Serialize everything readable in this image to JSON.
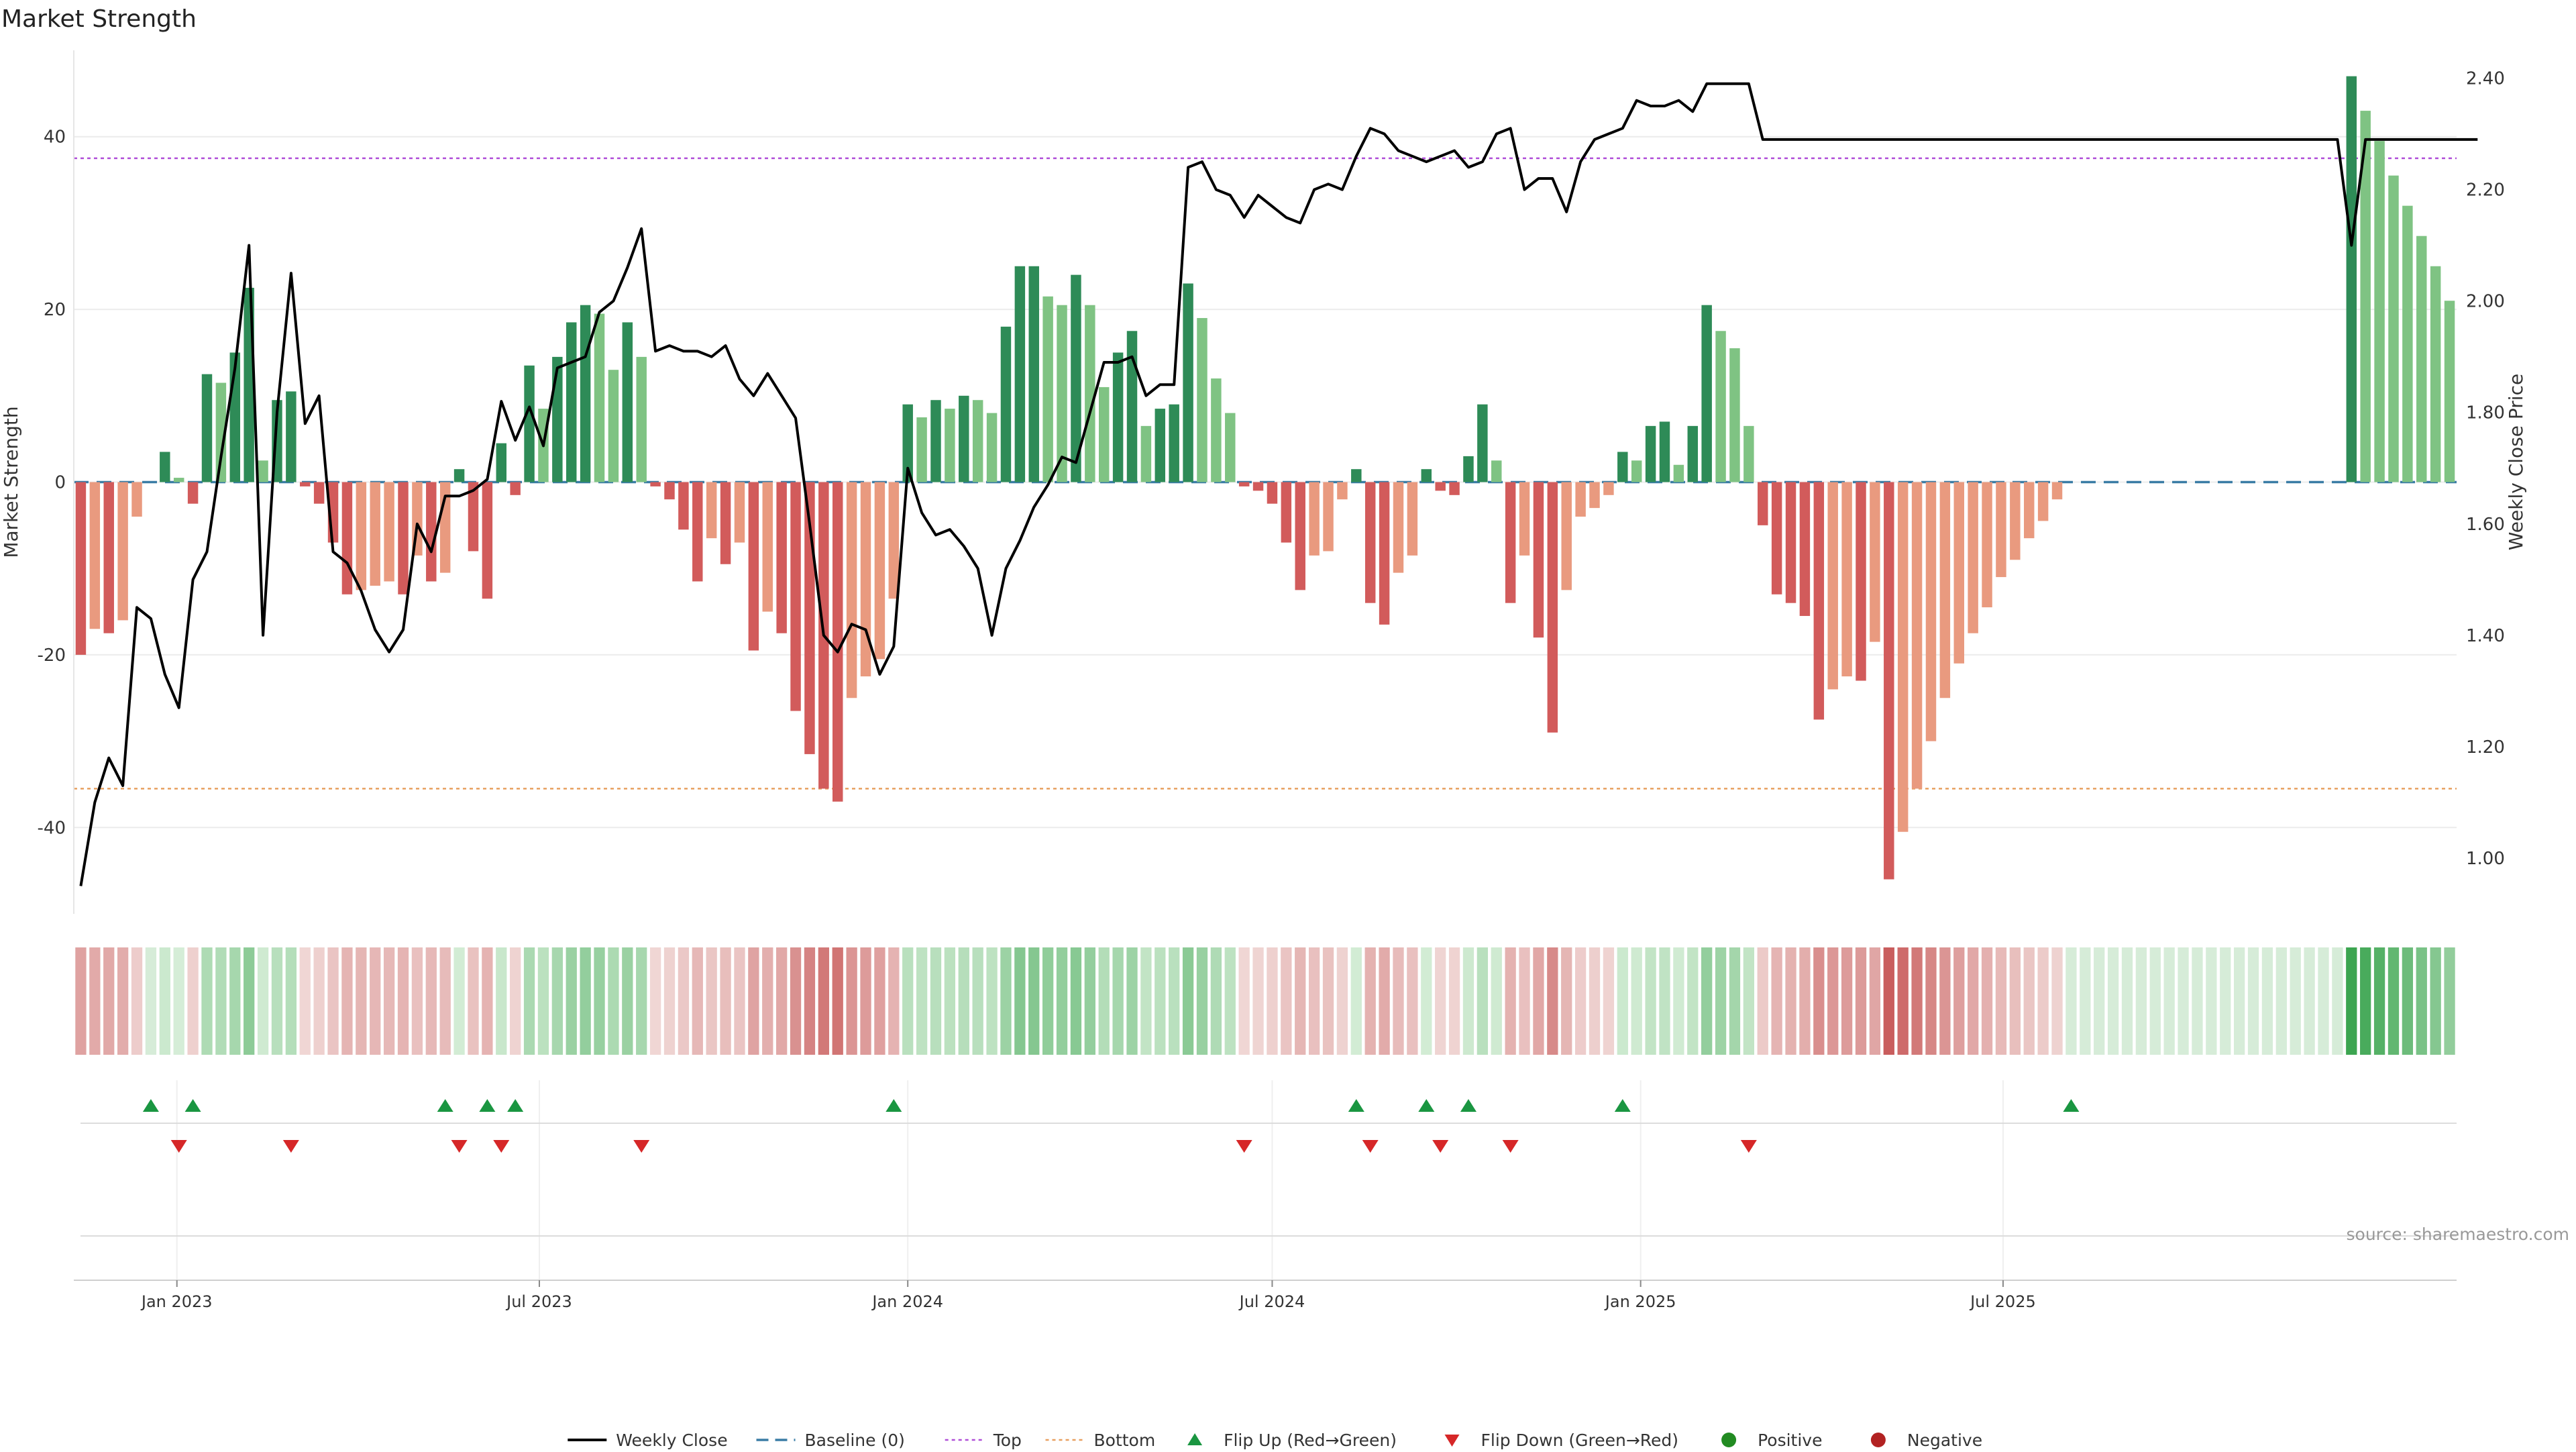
{
  "title": "Market Strength",
  "source": "source: sharemaestro.com",
  "colors": {
    "pos_strong": "#2e8b57",
    "pos_light": "#7fc383",
    "neg_strong": "#d25b5b",
    "neg_light": "#e99a7f",
    "price": "#000000",
    "baseline": "#3a7ca5",
    "top": "#b04fd8",
    "bottom": "#e8a060",
    "flip_up": "#1a9641",
    "flip_down": "#d62728",
    "positive_marker": "#228b22",
    "negative_marker": "#b22222"
  },
  "chart_data": {
    "type": "bar",
    "x_start": "2022-11-14",
    "x_interval": "weekly",
    "x_ticks": [
      "Jan 2023",
      "Jul 2023",
      "Jan 2024",
      "Jul 2024",
      "Jan 2025",
      "Jul 2025"
    ],
    "ylabel": "Market Strength",
    "y2label": "Weekly Close Price",
    "ylim": [
      -50,
      50
    ],
    "y_ticks": [
      -40,
      -20,
      0,
      20,
      40
    ],
    "y2lim": [
      0.9,
      2.45
    ],
    "y2_ticks": [
      "1.00",
      "1.20",
      "1.40",
      "1.60",
      "1.80",
      "2.00",
      "2.20",
      "2.40"
    ],
    "top_line": 37.5,
    "bottom_line": -35.5,
    "baseline": 0,
    "strength": [
      -20,
      -17,
      -17.5,
      -16,
      -4,
      0,
      3.5,
      0.5,
      -2.5,
      12.5,
      11.5,
      15,
      22.5,
      2.5,
      9.5,
      10.5,
      -0.5,
      -2.5,
      -7,
      -13,
      -12.5,
      -12,
      -11.5,
      -13,
      -8.5,
      -11.5,
      -10.5,
      1.5,
      -8,
      -13.5,
      4.5,
      -1.5,
      13.5,
      8.5,
      14.5,
      18.5,
      20.5,
      19.5,
      13,
      18.5,
      14.5,
      -0.5,
      -2,
      -5.5,
      -11.5,
      -6.5,
      -9.5,
      -7,
      -19.5,
      -15,
      -17.5,
      -26.5,
      -31.5,
      -35.5,
      -37,
      -25,
      -22.5,
      -20.5,
      -13.5,
      9,
      7.5,
      9.5,
      8.5,
      10,
      9.5,
      8,
      18,
      25,
      25,
      21.5,
      20.5,
      24,
      20.5,
      11,
      15,
      17.5,
      6.5,
      8.5,
      9,
      23,
      19,
      12,
      8,
      -0.5,
      -1,
      -2.5,
      -7,
      -12.5,
      -8.5,
      -8,
      -2,
      1.5,
      -14,
      -16.5,
      -10.5,
      -8.5,
      1.5,
      -1,
      -1.5,
      3,
      9,
      2.5,
      -14,
      -8.5,
      -18,
      -29,
      -12.5,
      -4,
      -3,
      -1.5,
      3.5,
      2.5,
      6.5,
      7,
      2,
      6.5,
      20.5,
      17.5,
      15.5,
      6.5,
      -5,
      -13,
      -14,
      -15.5,
      -27.5,
      -24,
      -22.5,
      -23,
      -18.5,
      -46,
      -40.5,
      -35.5,
      -30,
      -25,
      -21,
      -17.5,
      -14.5,
      -11,
      -9,
      -6.5,
      -4.5,
      -2,
      0,
      0,
      0,
      0,
      0,
      0,
      0,
      0,
      0,
      0,
      0,
      0,
      0,
      0,
      0,
      0,
      0,
      0,
      0,
      0,
      47,
      43,
      39.5,
      35.5,
      32,
      28.5,
      25,
      21
    ],
    "price": [
      0.95,
      1.1,
      1.18,
      1.13,
      1.45,
      1.43,
      1.33,
      1.27,
      1.5,
      1.55,
      1.72,
      1.88,
      2.1,
      1.4,
      1.8,
      2.05,
      1.78,
      1.83,
      1.55,
      1.53,
      1.48,
      1.41,
      1.37,
      1.41,
      1.6,
      1.55,
      1.65,
      1.65,
      1.66,
      1.68,
      1.82,
      1.75,
      1.81,
      1.74,
      1.88,
      1.89,
      1.9,
      1.98,
      2.0,
      2.06,
      2.13,
      1.91,
      1.92,
      1.91,
      1.91,
      1.9,
      1.92,
      1.86,
      1.83,
      1.87,
      1.83,
      1.79,
      1.6,
      1.4,
      1.37,
      1.42,
      1.41,
      1.33,
      1.38,
      1.7,
      1.62,
      1.58,
      1.59,
      1.56,
      1.52,
      1.4,
      1.52,
      1.57,
      1.63,
      1.67,
      1.72,
      1.71,
      1.8,
      1.89,
      1.89,
      1.9,
      1.83,
      1.85,
      1.85,
      2.24,
      2.25,
      2.2,
      2.19,
      2.15,
      2.19,
      2.17,
      2.15,
      2.14,
      2.2,
      2.21,
      2.2,
      2.26,
      2.31,
      2.3,
      2.27,
      2.26,
      2.25,
      2.26,
      2.27,
      2.24,
      2.25,
      2.3,
      2.31,
      2.2,
      2.22,
      2.22,
      2.16,
      2.25,
      2.29,
      2.3,
      2.31,
      2.36,
      2.35,
      2.35,
      2.36,
      2.34,
      2.39,
      2.39,
      2.39,
      2.39,
      2.29,
      2.29,
      2.29,
      2.29,
      2.29,
      2.29,
      2.29,
      2.29,
      2.29,
      2.29,
      2.29,
      2.29,
      2.29,
      2.29,
      2.29,
      2.29,
      2.29,
      2.29,
      2.29,
      2.29,
      2.29,
      2.29,
      2.29,
      2.29,
      2.29,
      2.29,
      2.29,
      2.29,
      2.29,
      2.29,
      2.29,
      2.29,
      2.29,
      2.29,
      2.29,
      2.29,
      2.29,
      2.29,
      2.29,
      2.29,
      2.29,
      2.29,
      2.1,
      2.29,
      2.29,
      2.29,
      2.29,
      2.29,
      2.29,
      2.29,
      2.29,
      2.29
    ],
    "flip_up_weeks": [
      5,
      8,
      26,
      29,
      31,
      58,
      91,
      96,
      99,
      110,
      142
    ],
    "flip_down_weeks": [
      7,
      15,
      27,
      30,
      40,
      83,
      92,
      97,
      102,
      119
    ],
    "legend": [
      "Weekly Close",
      "Baseline (0)",
      "Top",
      "Bottom",
      "Flip Up (Red→Green)",
      "Flip Down (Green→Red)",
      "Positive",
      "Negative"
    ],
    "legend_position": "bottom-center"
  }
}
